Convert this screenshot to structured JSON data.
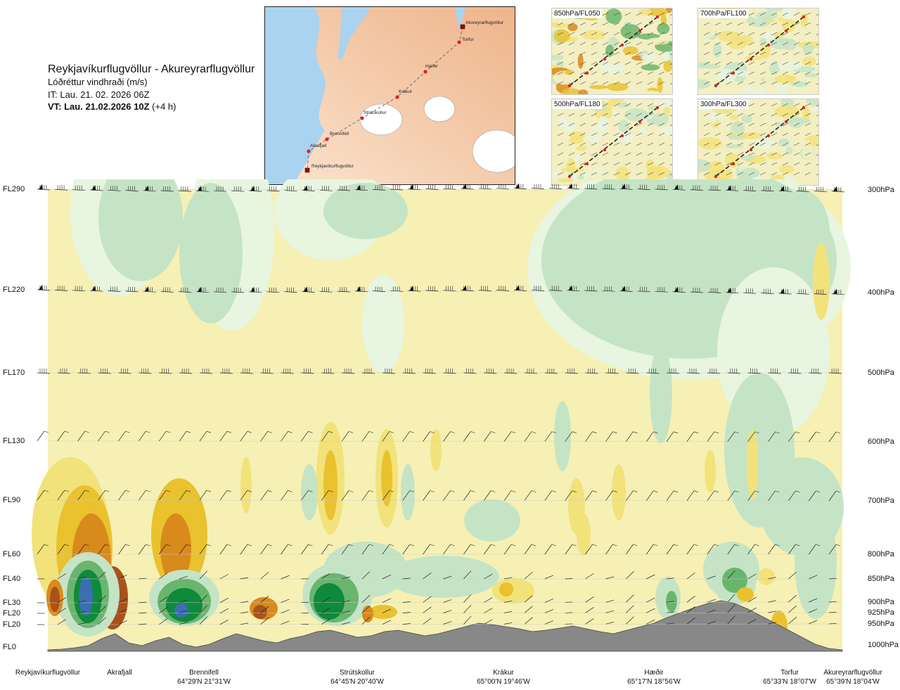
{
  "header": {
    "title": "Reykjavíkurflugvöllur - Akureyrarflugvöllur",
    "subtitle": "Lóðréttur vindhraði (m/s)",
    "init_time": "IT: Lau. 21. 02. 2026 06Z",
    "valid_time": "VT: Lau. 21.02.2026 10Z",
    "lead_time": "(+4 h)"
  },
  "map": {
    "waypoints": [
      {
        "name": "Akureyrarflugvöllur",
        "marker": "square"
      },
      {
        "name": "Torfur",
        "marker": "dot"
      },
      {
        "name": "Hæðir",
        "marker": "dot"
      },
      {
        "name": "Krákur",
        "marker": "dot"
      },
      {
        "name": "Strútskollur",
        "marker": "dot"
      },
      {
        "name": "Brennifell",
        "marker": "dot"
      },
      {
        "name": "Akrafjall",
        "marker": "dot"
      },
      {
        "name": "Reykjavíkurflugvöllur",
        "marker": "square"
      }
    ]
  },
  "panels": [
    {
      "label": "850hPa/FL050"
    },
    {
      "label": "700hPa/FL100"
    },
    {
      "label": "500hPa/FL180"
    },
    {
      "label": "300hPa/FL300"
    }
  ],
  "chart_data": {
    "type": "heatmap",
    "variable": "vertical wind speed",
    "units": "m/s",
    "left_axis_levels": [
      "FL290",
      "FL220",
      "FL170",
      "FL130",
      "FL90",
      "FL60",
      "FL40",
      "FL30",
      "FL20",
      "FL20",
      "FL0"
    ],
    "right_axis_levels": [
      "300hPa",
      "400hPa",
      "500hPa",
      "600hPa",
      "700hPa",
      "800hPa",
      "850hPa",
      "900hPa",
      "925hPa",
      "950hPa",
      "1000hPa"
    ],
    "route_points": [
      {
        "name": "Reykjavíkurflugvöllur",
        "coord": ""
      },
      {
        "name": "Akrafjall",
        "coord": ""
      },
      {
        "name": "Brennifell",
        "coord": "64°29'N 21°31'W"
      },
      {
        "name": "Strútskollur",
        "coord": "64°45'N 20°40'W"
      },
      {
        "name": "Krákur",
        "coord": "65°00'N 19°46'W"
      },
      {
        "name": "Hæðir",
        "coord": "65°17'N 18°56'W"
      },
      {
        "name": "Torfur",
        "coord": "65°33'N 18°07'W"
      },
      {
        "name": "Akureyrarflugvöllur",
        "coord": "65°39'N 18°04'W"
      }
    ],
    "terrain_profile": [
      0.02,
      0.03,
      0.05,
      0.08,
      0.18,
      0.25,
      0.12,
      0.08,
      0.15,
      0.2,
      0.1,
      0.06,
      0.1,
      0.18,
      0.25,
      0.2,
      0.15,
      0.12,
      0.18,
      0.22,
      0.28,
      0.3,
      0.25,
      0.2,
      0.22,
      0.28,
      0.3,
      0.26,
      0.22,
      0.25,
      0.3,
      0.35,
      0.4,
      0.38,
      0.35,
      0.32,
      0.28,
      0.3,
      0.33,
      0.36,
      0.32,
      0.28,
      0.25,
      0.3,
      0.35,
      0.4,
      0.48,
      0.55,
      0.62,
      0.68,
      0.72,
      0.68,
      0.6,
      0.5,
      0.4,
      0.3,
      0.2,
      0.1,
      0.04,
      0.02
    ],
    "colors": {
      "strong_down": "#3a6fb0",
      "down2": "#0f8a3a",
      "down1": "#6ab56e",
      "down_weak": "#c5e4c5",
      "near_zero_neg": "#e8f5e0",
      "near_zero_pos": "#f6f0b5",
      "up_weak": "#f2e27a",
      "up1": "#e9c22d",
      "up2": "#d98a1c",
      "up3": "#a8521a",
      "terrain": "#888888"
    },
    "wind_barb_levels": [
      "FL290",
      "FL220",
      "FL170",
      "FL130",
      "FL90",
      "FL60",
      "FL40",
      "FL30",
      "FL20",
      "FL20"
    ]
  }
}
